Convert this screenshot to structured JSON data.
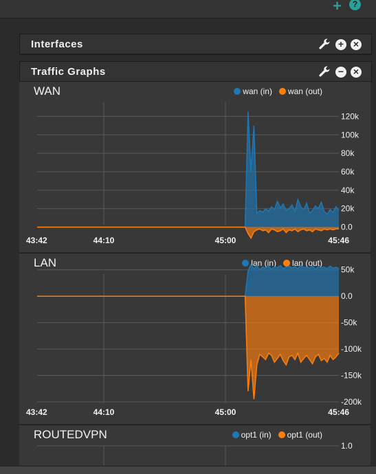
{
  "toolbar": {
    "add_icon": "plus-icon",
    "help_icon": "question-icon",
    "add_label": "+",
    "help_label": "?"
  },
  "interfaces_panel": {
    "title": "Interfaces",
    "add_label": "+",
    "close_label": "×"
  },
  "traffic_panel": {
    "title": "Traffic Graphs",
    "minimize_label": "−",
    "close_label": "×"
  },
  "colors": {
    "in": "#1f77b4",
    "out": "#ff7f0e"
  },
  "graphs": [
    {
      "title": "WAN",
      "legend_in": "wan (in)",
      "legend_out": "wan (out)"
    },
    {
      "title": "LAN",
      "legend_in": "lan (in)",
      "legend_out": "lan (out)"
    },
    {
      "title": "ROUTEDVPN",
      "legend_in": "opt1 (in)",
      "legend_out": "opt1 (out)"
    }
  ],
  "chart_data": [
    {
      "type": "area",
      "title": "WAN",
      "x_ticks": [
        "43:42",
        "44:10",
        "45:00",
        "45:46"
      ],
      "y_ticks": [
        "120k",
        "100k",
        "80k",
        "60k",
        "40k",
        "20k",
        "0.0"
      ],
      "ylim": [
        -10000,
        130000
      ],
      "series": [
        {
          "name": "wan (in)",
          "values": [
            0,
            0,
            0,
            0,
            0,
            0,
            0,
            0,
            0,
            0,
            0,
            0,
            0,
            0,
            0,
            0,
            0,
            0,
            0,
            0,
            0,
            0,
            0,
            0,
            0,
            0,
            0,
            0,
            0,
            0,
            0,
            0,
            0,
            0,
            0,
            0,
            0,
            0,
            0,
            0,
            0,
            0,
            0,
            0,
            0,
            0,
            0,
            0,
            0,
            0,
            0,
            0,
            0,
            0,
            0,
            0,
            0,
            0,
            0,
            0,
            0,
            0,
            0,
            0,
            0,
            0,
            0,
            0,
            0,
            0,
            0,
            0,
            125000,
            60000,
            110000,
            15000,
            18000,
            16000,
            20000,
            17000,
            22000,
            19000,
            28000,
            21000,
            25000,
            18000,
            20000,
            24000,
            17000,
            30000,
            22000,
            19000,
            26000,
            15000,
            18000,
            23000,
            20000,
            27000,
            17000,
            14000,
            19000,
            16000,
            22000,
            18000
          ]
        },
        {
          "name": "wan (out)",
          "values": [
            0,
            0,
            0,
            0,
            0,
            0,
            0,
            0,
            0,
            0,
            0,
            0,
            0,
            0,
            0,
            0,
            0,
            0,
            0,
            0,
            0,
            0,
            0,
            0,
            0,
            0,
            0,
            0,
            0,
            0,
            0,
            0,
            0,
            0,
            0,
            0,
            0,
            0,
            0,
            0,
            0,
            0,
            0,
            0,
            0,
            0,
            0,
            0,
            0,
            0,
            0,
            0,
            0,
            0,
            0,
            0,
            0,
            0,
            0,
            0,
            0,
            0,
            0,
            0,
            0,
            0,
            0,
            0,
            0,
            0,
            0,
            0,
            -7000,
            -12000,
            -5000,
            -3000,
            -2000,
            -4000,
            -3000,
            -6000,
            -2000,
            -3000,
            -5000,
            -4000,
            -2000,
            -6000,
            -3000,
            -4000,
            -2000,
            -5000,
            -3000,
            -2000,
            -4000,
            -3000,
            -5000,
            -2000,
            -3000,
            -4000,
            -2000,
            -3000,
            -2000,
            -3000,
            -2000,
            -2000
          ]
        }
      ]
    },
    {
      "type": "area",
      "title": "LAN",
      "x_ticks": [
        "43:42",
        "44:10",
        "45:00",
        "45:46"
      ],
      "y_ticks": [
        "50k",
        "0.0",
        "-50k",
        "-100k",
        "-150k",
        "-200k"
      ],
      "ylim": [
        -200000,
        60000
      ],
      "series": [
        {
          "name": "lan (in)",
          "values": [
            0,
            0,
            0,
            0,
            0,
            0,
            0,
            0,
            0,
            0,
            0,
            0,
            0,
            0,
            0,
            0,
            0,
            0,
            0,
            0,
            0,
            0,
            0,
            0,
            0,
            0,
            0,
            0,
            0,
            0,
            0,
            0,
            0,
            0,
            0,
            0,
            0,
            0,
            0,
            0,
            0,
            0,
            0,
            0,
            0,
            0,
            0,
            0,
            0,
            0,
            0,
            0,
            0,
            0,
            0,
            0,
            0,
            0,
            0,
            0,
            0,
            0,
            0,
            0,
            0,
            0,
            0,
            0,
            0,
            0,
            0,
            0,
            48000,
            60000,
            52000,
            58000,
            50000,
            55000,
            53000,
            57000,
            51000,
            56000,
            54000,
            58000,
            52000,
            55000,
            57000,
            53000,
            56000,
            52000,
            58000,
            54000,
            55000,
            53000,
            57000,
            51000,
            56000,
            54000,
            55000,
            52000,
            57000,
            53000,
            55000,
            52000
          ]
        },
        {
          "name": "lan (out)",
          "values": [
            0,
            0,
            0,
            0,
            0,
            0,
            0,
            0,
            0,
            0,
            0,
            0,
            0,
            0,
            0,
            0,
            0,
            0,
            0,
            0,
            0,
            0,
            0,
            0,
            0,
            0,
            0,
            0,
            0,
            0,
            0,
            0,
            0,
            0,
            0,
            0,
            0,
            0,
            0,
            0,
            0,
            0,
            0,
            0,
            0,
            0,
            0,
            0,
            0,
            0,
            0,
            0,
            0,
            0,
            0,
            0,
            0,
            0,
            0,
            0,
            0,
            0,
            0,
            0,
            0,
            0,
            0,
            0,
            0,
            0,
            0,
            0,
            -180000,
            -120000,
            -195000,
            -130000,
            -110000,
            -115000,
            -120000,
            -108000,
            -112000,
            -125000,
            -118000,
            -110000,
            -122000,
            -130000,
            -115000,
            -112000,
            -120000,
            -108000,
            -125000,
            -118000,
            -112000,
            -120000,
            -128000,
            -115000,
            -110000,
            -122000,
            -118000,
            -125000,
            -112000,
            -120000,
            -115000,
            -108000
          ]
        }
      ]
    },
    {
      "type": "area",
      "title": "ROUTEDVPN",
      "x_ticks": [],
      "y_ticks": [
        "1.0"
      ],
      "ylim": [
        0,
        1
      ],
      "series": [
        {
          "name": "opt1 (in)",
          "values": []
        },
        {
          "name": "opt1 (out)",
          "values": []
        }
      ]
    }
  ]
}
